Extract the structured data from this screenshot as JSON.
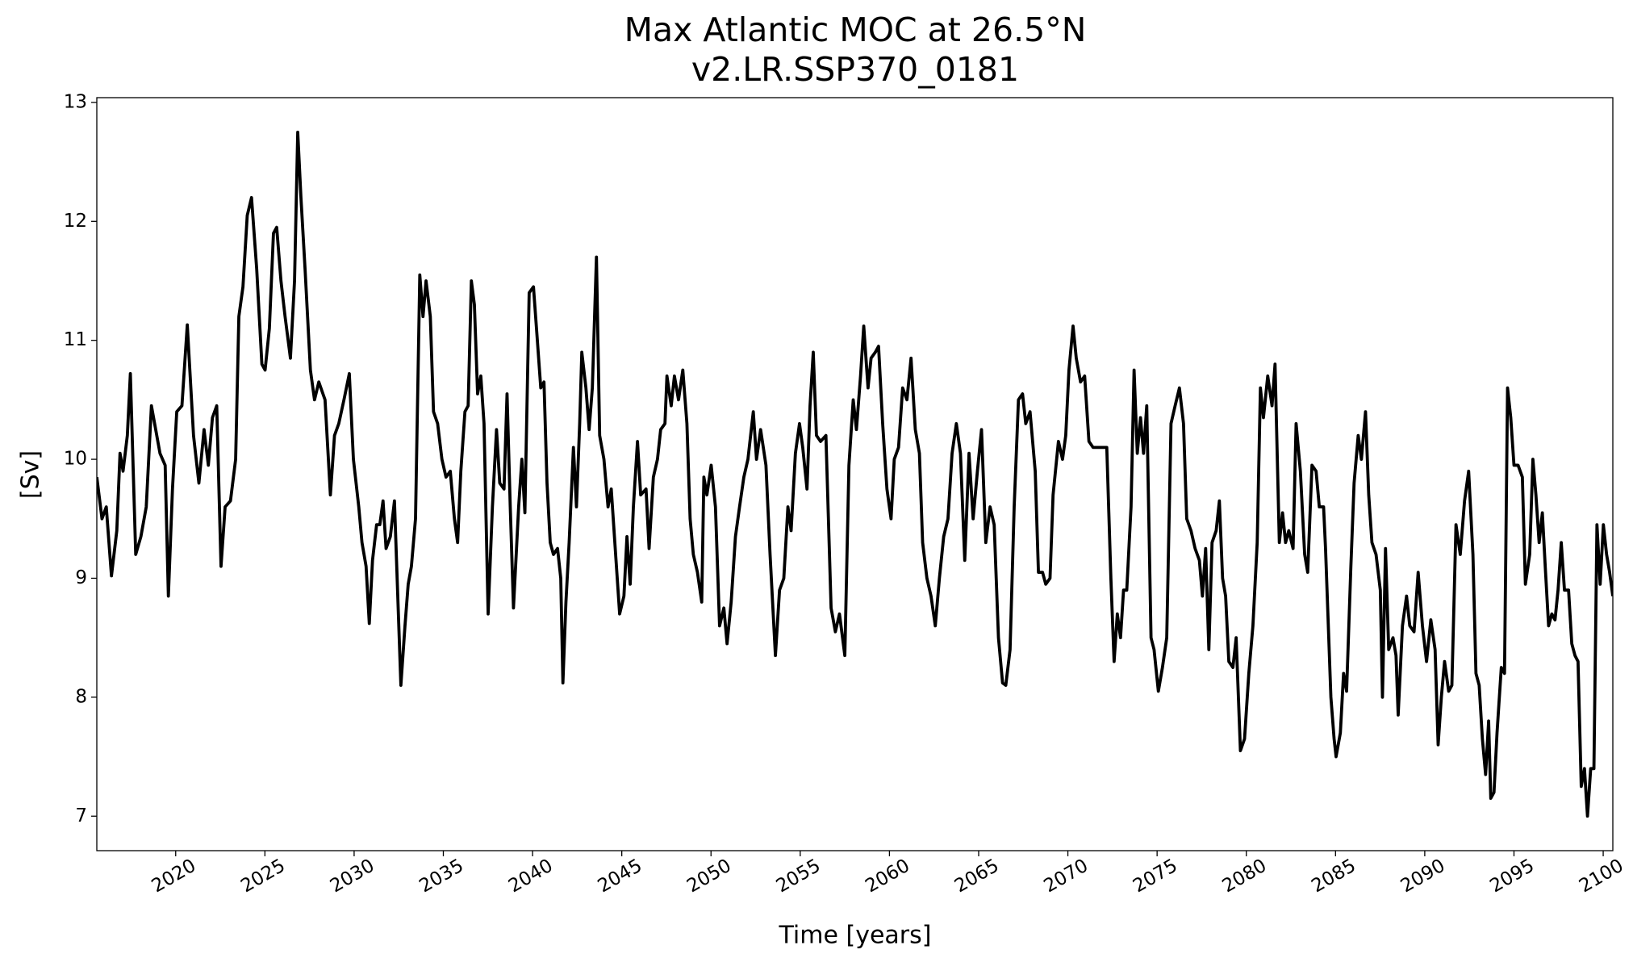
{
  "chart_data": {
    "type": "line",
    "title": "Max Atlantic MOC at 26.5°N",
    "subtitle": "v2.LR.SSP370_0181",
    "xlabel": "Time [years]",
    "ylabel": "[Sv]",
    "color": "#000000",
    "xlim": [
      2015.58,
      2100.54
    ],
    "ylim": [
      6.71,
      13.04
    ],
    "xticks": [
      2020,
      2025,
      2030,
      2035,
      2040,
      2045,
      2050,
      2055,
      2060,
      2065,
      2070,
      2075,
      2080,
      2085,
      2090,
      2095,
      2100
    ],
    "yticks": [
      7,
      8,
      9,
      10,
      11,
      12,
      13
    ],
    "x": [
      2015.58,
      2015.87,
      2016.11,
      2016.4,
      2016.7,
      2016.88,
      2017.05,
      2017.29,
      2017.46,
      2017.76,
      2018.05,
      2018.35,
      2018.64,
      2018.88,
      2019.12,
      2019.41,
      2019.59,
      2019.82,
      2020.06,
      2020.35,
      2020.65,
      2021.0,
      2021.3,
      2021.59,
      2021.83,
      2022.06,
      2022.3,
      2022.54,
      2022.77,
      2023.07,
      2023.36,
      2023.54,
      2023.77,
      2024.01,
      2024.25,
      2024.54,
      2024.83,
      2025.01,
      2025.25,
      2025.48,
      2025.66,
      2025.9,
      2026.13,
      2026.43,
      2026.66,
      2026.84,
      2027.02,
      2027.25,
      2027.55,
      2027.78,
      2028.02,
      2028.37,
      2028.67,
      2028.9,
      2029.14,
      2029.43,
      2029.73,
      2029.96,
      2030.26,
      2030.44,
      2030.67,
      2030.85,
      2031.03,
      2031.26,
      2031.44,
      2031.62,
      2031.79,
      2032.03,
      2032.26,
      2032.62,
      2032.85,
      2033.03,
      2033.21,
      2033.44,
      2033.68,
      2033.86,
      2034.03,
      2034.27,
      2034.45,
      2034.68,
      2034.92,
      2035.15,
      2035.39,
      2035.62,
      2035.8,
      2035.98,
      2036.21,
      2036.39,
      2036.57,
      2036.74,
      2036.92,
      2037.1,
      2037.28,
      2037.51,
      2037.75,
      2037.98,
      2038.16,
      2038.4,
      2038.57,
      2038.75,
      2038.93,
      2039.22,
      2039.4,
      2039.57,
      2039.81,
      2040.05,
      2040.22,
      2040.46,
      2040.64,
      2040.81,
      2040.99,
      2041.17,
      2041.4,
      2041.58,
      2041.7,
      2041.87,
      2042.05,
      2042.29,
      2042.46,
      2042.64,
      2042.76,
      2042.99,
      2043.17,
      2043.35,
      2043.58,
      2043.76,
      2044.0,
      2044.23,
      2044.41,
      2044.7,
      2044.88,
      2045.12,
      2045.29,
      2045.47,
      2045.65,
      2045.88,
      2046.06,
      2046.36,
      2046.53,
      2046.77,
      2047.0,
      2047.18,
      2047.42,
      2047.53,
      2047.77,
      2047.95,
      2048.18,
      2048.42,
      2048.65,
      2048.83,
      2049.01,
      2049.24,
      2049.48,
      2049.6,
      2049.77,
      2050.01,
      2050.25,
      2050.48,
      2050.72,
      2050.9,
      2051.13,
      2051.37,
      2051.6,
      2051.84,
      2052.07,
      2052.37,
      2052.55,
      2052.78,
      2053.08,
      2053.31,
      2053.61,
      2053.84,
      2054.08,
      2054.31,
      2054.49,
      2054.73,
      2054.96,
      2055.14,
      2055.38,
      2055.55,
      2055.73,
      2055.91,
      2056.14,
      2056.44,
      2056.73,
      2056.97,
      2057.2,
      2057.5,
      2057.73,
      2057.97,
      2058.15,
      2058.38,
      2058.56,
      2058.8,
      2058.97,
      2059.21,
      2059.39,
      2059.62,
      2059.86,
      2060.09,
      2060.27,
      2060.51,
      2060.74,
      2060.98,
      2061.21,
      2061.45,
      2061.68,
      2061.86,
      2062.1,
      2062.33,
      2062.57,
      2062.8,
      2063.04,
      2063.28,
      2063.51,
      2063.75,
      2063.98,
      2064.22,
      2064.46,
      2064.69,
      2064.93,
      2065.16,
      2065.4,
      2065.64,
      2065.87,
      2066.11,
      2066.34,
      2066.52,
      2066.76,
      2066.99,
      2067.23,
      2067.46,
      2067.64,
      2067.88,
      2068.17,
      2068.35,
      2068.58,
      2068.76,
      2069.0,
      2069.17,
      2069.47,
      2069.7,
      2069.88,
      2070.06,
      2070.29,
      2070.47,
      2070.71,
      2070.94,
      2071.18,
      2071.41,
      2072.18,
      2072.41,
      2072.59,
      2072.77,
      2072.95,
      2073.12,
      2073.3,
      2073.54,
      2073.71,
      2073.89,
      2074.07,
      2074.24,
      2074.42,
      2074.66,
      2074.83,
      2075.07,
      2075.3,
      2075.54,
      2075.78,
      2076.01,
      2076.25,
      2076.48,
      2076.66,
      2076.9,
      2077.13,
      2077.37,
      2077.54,
      2077.72,
      2077.9,
      2078.08,
      2078.31,
      2078.49,
      2078.67,
      2078.84,
      2079.02,
      2079.25,
      2079.43,
      2079.67,
      2079.9,
      2080.14,
      2080.37,
      2080.61,
      2080.79,
      2080.96,
      2081.2,
      2081.44,
      2081.61,
      2081.85,
      2082.03,
      2082.2,
      2082.38,
      2082.62,
      2082.79,
      2083.03,
      2083.27,
      2083.44,
      2083.68,
      2083.91,
      2084.09,
      2084.33,
      2084.44,
      2084.74,
      2084.92,
      2085.03,
      2085.27,
      2085.45,
      2085.62,
      2085.86,
      2086.04,
      2086.27,
      2086.45,
      2086.68,
      2086.86,
      2087.04,
      2087.27,
      2087.51,
      2087.63,
      2087.8,
      2087.98,
      2088.22,
      2088.39,
      2088.51,
      2088.75,
      2088.98,
      2089.16,
      2089.4,
      2089.63,
      2089.87,
      2090.1,
      2090.34,
      2090.58,
      2090.75,
      2090.93,
      2091.11,
      2091.34,
      2091.52,
      2091.75,
      2091.99,
      2092.23,
      2092.46,
      2092.7,
      2092.87,
      2093.05,
      2093.23,
      2093.41,
      2093.58,
      2093.7,
      2093.88,
      2094.05,
      2094.29,
      2094.47,
      2094.64,
      2094.82,
      2095.0,
      2095.23,
      2095.47,
      2095.64,
      2095.88,
      2096.06,
      2096.23,
      2096.41,
      2096.59,
      2096.77,
      2096.94,
      2097.12,
      2097.3,
      2097.47,
      2097.65,
      2097.83,
      2098.06,
      2098.24,
      2098.42,
      2098.59,
      2098.77,
      2098.95,
      2099.12,
      2099.3,
      2099.48,
      2099.65,
      2099.83,
      2100.01,
      2100.19,
      2100.36,
      2100.54
    ],
    "values": [
      9.85,
      9.5,
      9.6,
      9.02,
      9.4,
      10.05,
      9.9,
      10.2,
      10.72,
      9.2,
      9.35,
      9.6,
      10.45,
      10.25,
      10.05,
      9.95,
      8.85,
      9.75,
      10.4,
      10.45,
      11.13,
      10.2,
      9.8,
      10.25,
      9.95,
      10.35,
      10.45,
      9.1,
      9.6,
      9.65,
      10.0,
      11.2,
      11.45,
      12.05,
      12.2,
      11.6,
      10.8,
      10.75,
      11.1,
      11.9,
      11.95,
      11.5,
      11.2,
      10.85,
      11.5,
      12.75,
      12.2,
      11.6,
      10.75,
      10.5,
      10.65,
      10.5,
      9.7,
      10.2,
      10.3,
      10.5,
      10.72,
      10.0,
      9.6,
      9.3,
      9.1,
      8.62,
      9.15,
      9.45,
      9.45,
      9.65,
      9.25,
      9.35,
      9.65,
      8.1,
      8.6,
      8.95,
      9.1,
      9.5,
      11.55,
      11.2,
      11.5,
      11.2,
      10.4,
      10.3,
      10.0,
      9.85,
      9.9,
      9.5,
      9.3,
      9.9,
      10.4,
      10.45,
      11.5,
      11.3,
      10.55,
      10.7,
      10.3,
      8.7,
      9.6,
      10.25,
      9.8,
      9.75,
      10.55,
      9.6,
      8.75,
      9.6,
      10.0,
      9.55,
      11.4,
      11.45,
      11.1,
      10.6,
      10.65,
      9.8,
      9.3,
      9.2,
      9.25,
      9.0,
      8.12,
      8.8,
      9.3,
      10.1,
      9.6,
      10.3,
      10.9,
      10.6,
      10.25,
      10.6,
      11.7,
      10.2,
      10.0,
      9.6,
      9.75,
      9.1,
      8.7,
      8.85,
      9.35,
      8.95,
      9.6,
      10.15,
      9.7,
      9.75,
      9.25,
      9.85,
      10.0,
      10.25,
      10.3,
      10.7,
      10.45,
      10.7,
      10.5,
      10.75,
      10.3,
      9.5,
      9.2,
      9.05,
      8.8,
      9.85,
      9.7,
      9.95,
      9.6,
      8.6,
      8.75,
      8.45,
      8.8,
      9.35,
      9.6,
      9.85,
      10.0,
      10.4,
      10.0,
      10.25,
      9.95,
      9.2,
      8.35,
      8.9,
      9.0,
      9.6,
      9.4,
      10.05,
      10.3,
      10.1,
      9.75,
      10.45,
      10.9,
      10.2,
      10.15,
      10.2,
      8.75,
      8.55,
      8.7,
      8.35,
      9.95,
      10.5,
      10.25,
      10.7,
      11.12,
      10.6,
      10.85,
      10.9,
      10.95,
      10.3,
      9.75,
      9.5,
      10.0,
      10.1,
      10.6,
      10.5,
      10.85,
      10.25,
      10.05,
      9.3,
      9.0,
      8.85,
      8.6,
      9.0,
      9.35,
      9.5,
      10.05,
      10.3,
      10.05,
      9.15,
      10.05,
      9.5,
      9.9,
      10.25,
      9.3,
      9.6,
      9.45,
      8.5,
      8.12,
      8.1,
      8.4,
      9.6,
      10.5,
      10.55,
      10.3,
      10.4,
      9.9,
      9.05,
      9.05,
      8.95,
      9.0,
      9.7,
      10.15,
      10.0,
      10.2,
      10.75,
      11.12,
      10.85,
      10.65,
      10.7,
      10.15,
      10.1,
      10.1,
      9.0,
      8.3,
      8.7,
      8.5,
      8.9,
      8.9,
      9.6,
      10.75,
      10.05,
      10.35,
      10.05,
      10.45,
      8.5,
      8.4,
      8.05,
      8.25,
      8.5,
      10.3,
      10.45,
      10.6,
      10.3,
      9.5,
      9.4,
      9.25,
      9.15,
      8.85,
      9.25,
      8.4,
      9.3,
      9.4,
      9.65,
      9.0,
      8.85,
      8.3,
      8.25,
      8.5,
      7.55,
      7.65,
      8.2,
      8.6,
      9.3,
      10.6,
      10.35,
      10.7,
      10.45,
      10.8,
      9.3,
      9.55,
      9.3,
      9.4,
      9.25,
      10.3,
      9.9,
      9.2,
      9.05,
      9.95,
      9.9,
      9.6,
      9.6,
      9.25,
      8.0,
      7.65,
      7.5,
      7.7,
      8.2,
      8.05,
      9.1,
      9.8,
      10.2,
      10.0,
      10.4,
      9.7,
      9.3,
      9.2,
      8.9,
      8.0,
      9.25,
      8.4,
      8.5,
      8.35,
      7.85,
      8.6,
      8.85,
      8.6,
      8.55,
      9.05,
      8.6,
      8.3,
      8.65,
      8.4,
      7.6,
      8.0,
      8.3,
      8.05,
      8.1,
      9.45,
      9.2,
      9.65,
      9.9,
      9.2,
      8.2,
      8.1,
      7.65,
      7.35,
      7.8,
      7.15,
      7.2,
      7.7,
      8.25,
      8.2,
      10.6,
      10.35,
      9.95,
      9.95,
      9.85,
      8.95,
      9.2,
      10.0,
      9.7,
      9.3,
      9.55,
      9.05,
      8.6,
      8.7,
      8.65,
      8.9,
      9.3,
      8.9,
      8.9,
      8.45,
      8.35,
      8.3,
      7.25,
      7.4,
      7.0,
      7.4,
      7.4,
      9.45,
      8.95,
      9.45,
      9.2,
      9.05,
      8.85
    ]
  }
}
